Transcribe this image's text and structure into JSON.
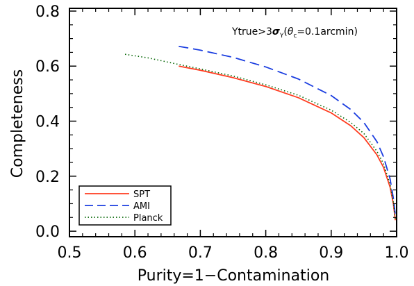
{
  "chart_data": {
    "type": "line",
    "title": "",
    "xlabel": "Purity=1−Contamination",
    "ylabel": "Completeness",
    "xlim": [
      0.5,
      1.0
    ],
    "ylim": [
      -0.02,
      0.81
    ],
    "x_ticks": [
      "0.5",
      "0.6",
      "0.7",
      "0.8",
      "0.9",
      "1.0"
    ],
    "y_ticks": [
      "0.0",
      "0.2",
      "0.4",
      "0.6",
      "0.8"
    ],
    "grid": false,
    "legend_position": "bottom-left",
    "annotation": {
      "prefix": "Ytrue>3",
      "sigma": "σ",
      "sigma_sub": "Y",
      "paren_open": "(",
      "theta": "θ",
      "theta_sub": "c",
      "value": "=0.1arcmin)"
    },
    "series": [
      {
        "name": "SPT",
        "color": "#ff3b1f",
        "dash": "solid",
        "points": [
          [
            0.667,
            0.6
          ],
          [
            0.7,
            0.585
          ],
          [
            0.75,
            0.558
          ],
          [
            0.8,
            0.526
          ],
          [
            0.85,
            0.485
          ],
          [
            0.9,
            0.43
          ],
          [
            0.93,
            0.383
          ],
          [
            0.95,
            0.34
          ],
          [
            0.97,
            0.277
          ],
          [
            0.98,
            0.232
          ],
          [
            0.99,
            0.16
          ],
          [
            0.995,
            0.1
          ],
          [
            0.998,
            0.04
          ]
        ]
      },
      {
        "name": "AMI",
        "color": "#1a3de0",
        "dash": "dashed",
        "points": [
          [
            0.667,
            0.672
          ],
          [
            0.7,
            0.658
          ],
          [
            0.75,
            0.632
          ],
          [
            0.8,
            0.597
          ],
          [
            0.85,
            0.553
          ],
          [
            0.9,
            0.493
          ],
          [
            0.93,
            0.442
          ],
          [
            0.95,
            0.395
          ],
          [
            0.97,
            0.325
          ],
          [
            0.98,
            0.27
          ],
          [
            0.99,
            0.19
          ],
          [
            0.995,
            0.12
          ],
          [
            0.998,
            0.06
          ]
        ]
      },
      {
        "name": "Planck",
        "color": "#006400",
        "dash": "dotted",
        "points": [
          [
            0.585,
            0.643
          ],
          [
            0.62,
            0.63
          ],
          [
            0.667,
            0.606
          ],
          [
            0.7,
            0.59
          ],
          [
            0.75,
            0.564
          ],
          [
            0.8,
            0.532
          ],
          [
            0.85,
            0.494
          ],
          [
            0.9,
            0.44
          ],
          [
            0.93,
            0.395
          ],
          [
            0.95,
            0.355
          ],
          [
            0.97,
            0.29
          ],
          [
            0.98,
            0.245
          ],
          [
            0.99,
            0.17
          ],
          [
            0.995,
            0.105
          ],
          [
            0.998,
            0.045
          ]
        ]
      }
    ]
  }
}
